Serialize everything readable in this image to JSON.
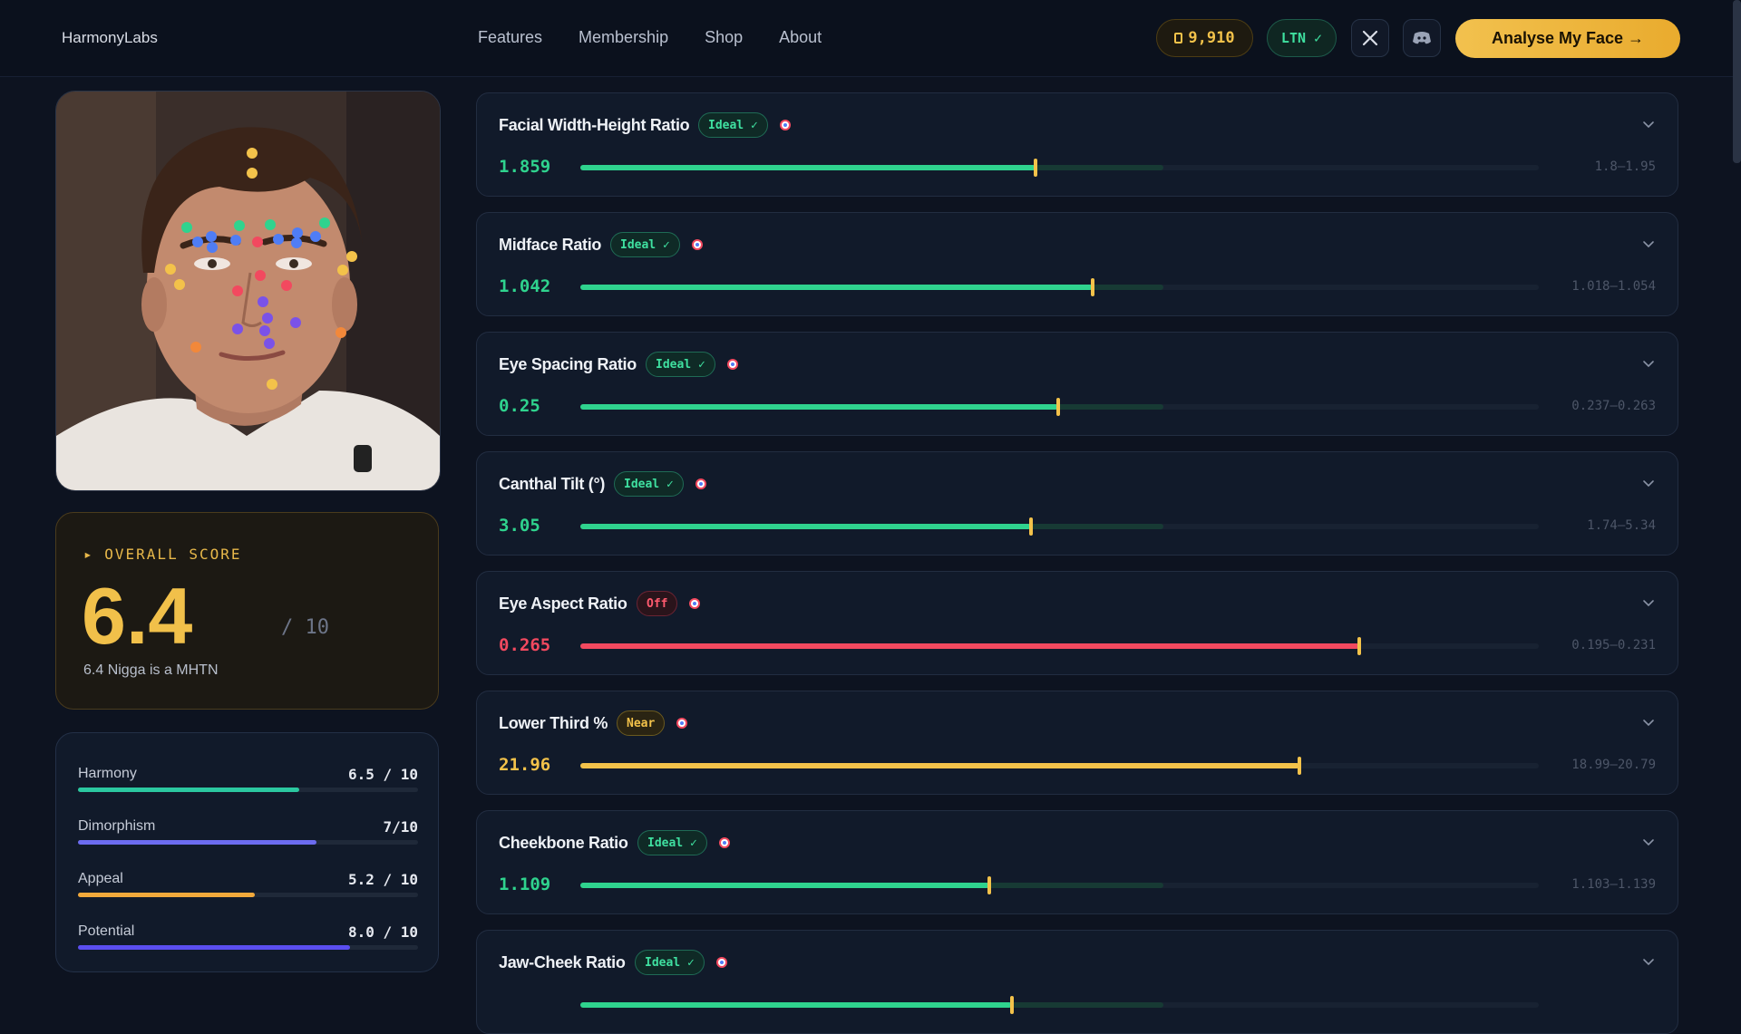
{
  "nav": {
    "brand": "HarmonyLabs",
    "links": [
      "Features",
      "Membership",
      "Shop",
      "About"
    ],
    "coins": "9,910",
    "coin_icon": "coin-icon",
    "status": "LTN ✓",
    "x_icon": "x-logo-icon",
    "discord_icon": "discord-icon",
    "cta": "Analyse My Face →"
  },
  "overall": {
    "label": "▸ OVERALL SCORE",
    "score": "6.4",
    "max": "/ 10",
    "description": "6.4 Nigga is a MHTN"
  },
  "subscores": [
    {
      "name": "Harmony",
      "value": "6.5 / 10",
      "fraction": 0.65,
      "color": "#2bc8a0"
    },
    {
      "name": "Dimorphism",
      "value": "7/10",
      "fraction": 0.7,
      "color": "#6c6cf0"
    },
    {
      "name": "Appeal",
      "value": "5.2 / 10",
      "fraction": 0.52,
      "color": "#f2a93b"
    },
    {
      "name": "Potential",
      "value": "8.0 / 10",
      "fraction": 0.8,
      "color": "#5b4ef0"
    }
  ],
  "metrics": [
    {
      "name": "Facial Width-Height Ratio",
      "badge": "Ideal ✓",
      "status": "ideal",
      "value": "1.859",
      "range": "1.8–1.95",
      "position": 0.475
    },
    {
      "name": "Midface Ratio",
      "badge": "Ideal ✓",
      "status": "ideal",
      "value": "1.042",
      "range": "1.018–1.054",
      "position": 0.535
    },
    {
      "name": "Eye Spacing Ratio",
      "badge": "Ideal ✓",
      "status": "ideal",
      "value": "0.25",
      "range": "0.237–0.263",
      "position": 0.499
    },
    {
      "name": "Canthal Tilt (°)",
      "badge": "Ideal ✓",
      "status": "ideal",
      "value": "3.05",
      "range": "1.74–5.34",
      "position": 0.47
    },
    {
      "name": "Eye Aspect Ratio",
      "badge": "Off",
      "status": "off",
      "value": "0.265",
      "range": "0.195–0.231",
      "position": 0.813
    },
    {
      "name": "Lower Third %",
      "badge": "Near",
      "status": "near",
      "value": "21.96",
      "range": "18.99–20.79",
      "position": 0.75
    },
    {
      "name": "Cheekbone Ratio",
      "badge": "Ideal ✓",
      "status": "ideal",
      "value": "1.109",
      "range": "1.103–1.139",
      "position": 0.427
    },
    {
      "name": "Jaw-Cheek Ratio",
      "badge": "Ideal ✓",
      "status": "ideal",
      "value": "",
      "range": "",
      "position": 0.45
    }
  ],
  "icons": {
    "target": "target-icon",
    "chevron": "chevron-down-icon"
  },
  "colors": {
    "ideal": "#2fd38e",
    "off": "#f2495f",
    "near": "#f3c24a",
    "accent": "#f1c04a"
  }
}
